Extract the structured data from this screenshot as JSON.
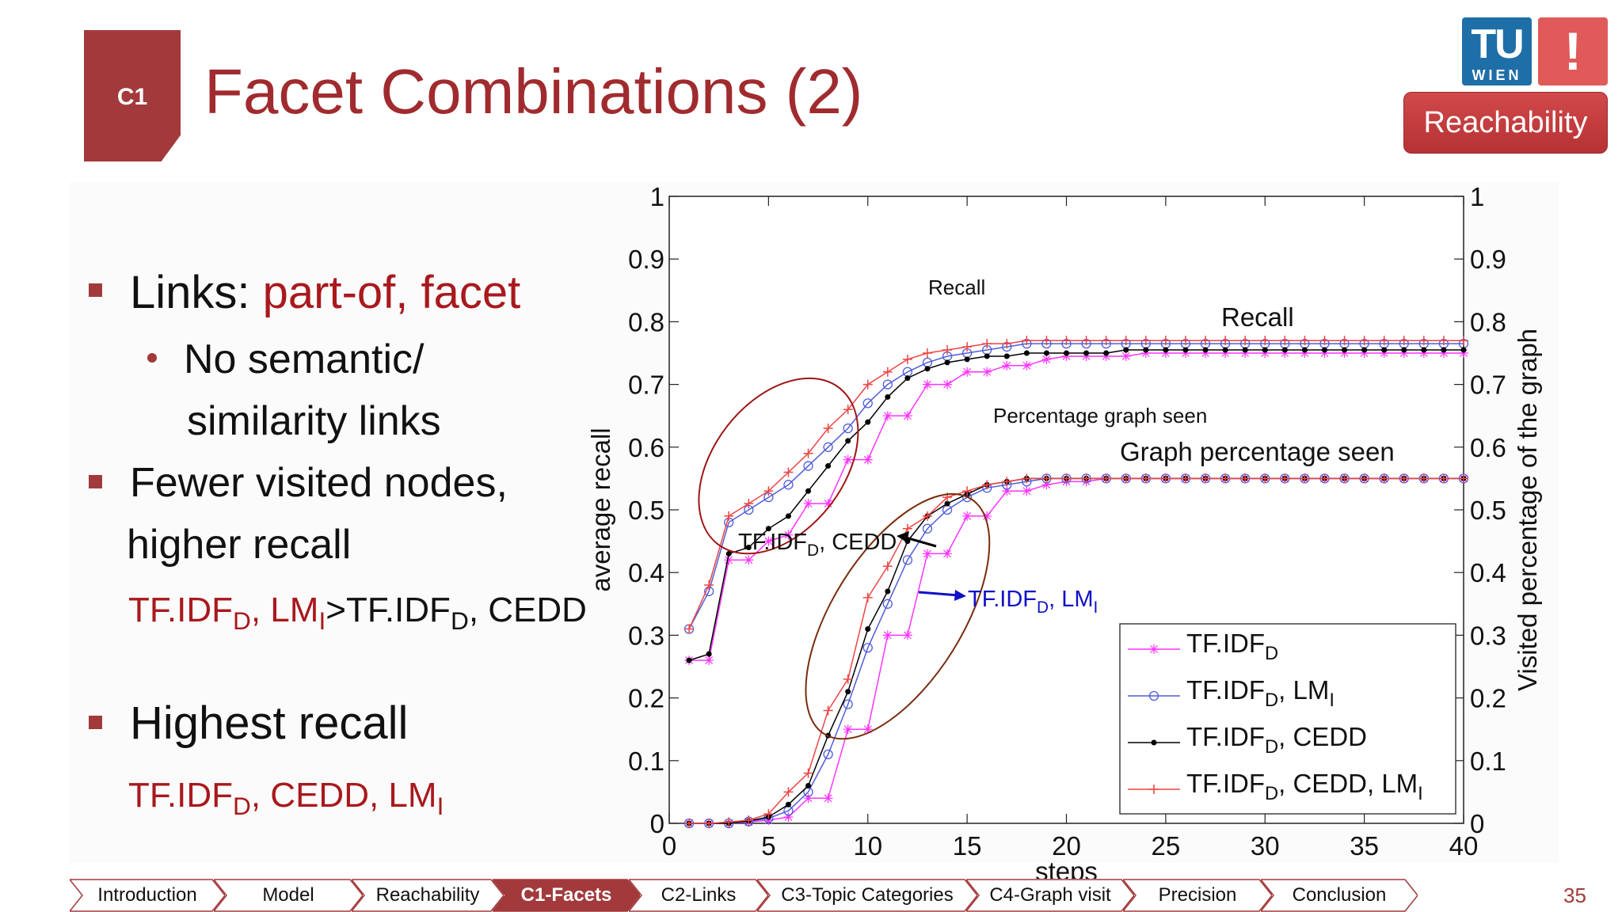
{
  "header": {
    "section_badge": "C1",
    "title": "Facet Combinations (2)",
    "logo_text_tu": "TU",
    "logo_text_wien": "WIEN",
    "logo_excl": "!",
    "reachability_button": "Reachability"
  },
  "colors": {
    "accent": "#a23a3c",
    "title_red": "#a02b2e",
    "text_red": "#a8191d",
    "logo_blue": "#1e6fa8",
    "logo_red": "#e05a5a"
  },
  "bullets": {
    "b1_prefix": "Links: ",
    "b1_red": "part-of, facet",
    "b1_sub_line1": "No semantic/",
    "b1_sub_line2": "similarity links",
    "b2_line1": "Fewer visited nodes,",
    "b2_line2": "higher recall",
    "b2_f1": "TF.IDF",
    "b2_f1_sub": "D",
    "b2_f2": ", LM",
    "b2_f2_sub": "I",
    "b2_f3": ">TF.IDF",
    "b2_f3_sub": "D",
    "b2_f4": ", CEDD",
    "b3_line1": "Highest recall",
    "b3_f1": "TF.IDF",
    "b3_f1_sub": "D",
    "b3_f2": ", CEDD, LM",
    "b3_f2_sub": "I"
  },
  "chart_data": {
    "type": "line",
    "xlabel": "steps",
    "ylabel": "average recall",
    "y2label": "Visited percentage of the graph",
    "xlim": [
      0,
      40
    ],
    "ylim": [
      0,
      1
    ],
    "xticks": [
      0,
      5,
      10,
      15,
      20,
      25,
      30,
      35,
      40
    ],
    "yticks": [
      0,
      0.1,
      0.2,
      0.3,
      0.4,
      0.5,
      0.6,
      0.7,
      0.8,
      0.9,
      1
    ],
    "xtick_labels": [
      "0",
      "5",
      "10",
      "15",
      "20",
      "25",
      "30",
      "35",
      "40"
    ],
    "ytick_labels": [
      "0",
      "0.1",
      "0.2",
      "0.3",
      "0.4",
      "0.5",
      "0.6",
      "0.7",
      "0.8",
      "0.9",
      "1"
    ],
    "legend_position": "bottom-right",
    "annotations": {
      "recall_small": "Recall",
      "recall_big": "Recall",
      "pct_small": "Percentage graph seen",
      "pct_big": "Graph percentage seen",
      "cedd_label": "TF.IDF",
      "cedd_label_sub": "D",
      "cedd_label_rest": ", CEDD",
      "lm_label": "TF.IDF",
      "lm_label_sub": "D",
      "lm_label_rest": ", LM",
      "lm_label_sub2": "I"
    },
    "legend": [
      {
        "main": "TF.IDF",
        "sub": "D",
        "rest": "",
        "sub2": ""
      },
      {
        "main": "TF.IDF",
        "sub": "D",
        "rest": ", LM",
        "sub2": "I"
      },
      {
        "main": "TF.IDF",
        "sub": "D",
        "rest": ", CEDD",
        "sub2": ""
      },
      {
        "main": "TF.IDF",
        "sub": "D",
        "rest": ", CEDD, LM",
        "sub2": "I"
      }
    ],
    "x": [
      1,
      2,
      3,
      4,
      5,
      6,
      7,
      8,
      9,
      10,
      11,
      12,
      13,
      14,
      15,
      16,
      17,
      18,
      19,
      20,
      21,
      22,
      23,
      24,
      25,
      26,
      27,
      28,
      29,
      30,
      31,
      32,
      33,
      34,
      35,
      36,
      37,
      38,
      39,
      40
    ],
    "series": [
      {
        "group": "recall",
        "legend_index": 0,
        "color": "#ff33ff",
        "marker": "star",
        "values": [
          0.26,
          0.26,
          0.42,
          0.42,
          0.45,
          0.46,
          0.51,
          0.51,
          0.58,
          0.58,
          0.65,
          0.65,
          0.7,
          0.7,
          0.72,
          0.72,
          0.73,
          0.73,
          0.74,
          0.745,
          0.745,
          0.745,
          0.745,
          0.75,
          0.75,
          0.75,
          0.75,
          0.75,
          0.75,
          0.75,
          0.75,
          0.75,
          0.75,
          0.75,
          0.75,
          0.75,
          0.75,
          0.75,
          0.75,
          0.75
        ]
      },
      {
        "group": "recall",
        "legend_index": 1,
        "color": "#4f5dd8",
        "marker": "circle",
        "values": [
          0.31,
          0.37,
          0.48,
          0.5,
          0.52,
          0.54,
          0.57,
          0.6,
          0.63,
          0.67,
          0.7,
          0.72,
          0.735,
          0.745,
          0.75,
          0.755,
          0.76,
          0.765,
          0.765,
          0.765,
          0.765,
          0.765,
          0.765,
          0.765,
          0.765,
          0.765,
          0.765,
          0.765,
          0.765,
          0.765,
          0.765,
          0.765,
          0.765,
          0.765,
          0.765,
          0.765,
          0.765,
          0.765,
          0.765,
          0.765
        ]
      },
      {
        "group": "recall",
        "legend_index": 2,
        "color": "#000000",
        "marker": "dot",
        "values": [
          0.26,
          0.27,
          0.43,
          0.44,
          0.47,
          0.49,
          0.53,
          0.57,
          0.61,
          0.64,
          0.68,
          0.71,
          0.725,
          0.735,
          0.74,
          0.745,
          0.745,
          0.75,
          0.75,
          0.75,
          0.75,
          0.75,
          0.755,
          0.755,
          0.755,
          0.755,
          0.755,
          0.755,
          0.755,
          0.755,
          0.755,
          0.755,
          0.755,
          0.755,
          0.755,
          0.755,
          0.755,
          0.755,
          0.755,
          0.755
        ]
      },
      {
        "group": "recall",
        "legend_index": 3,
        "color": "#ee4444",
        "marker": "plus",
        "values": [
          0.31,
          0.38,
          0.49,
          0.51,
          0.53,
          0.56,
          0.59,
          0.63,
          0.66,
          0.7,
          0.72,
          0.74,
          0.75,
          0.755,
          0.76,
          0.765,
          0.765,
          0.77,
          0.77,
          0.77,
          0.77,
          0.77,
          0.77,
          0.77,
          0.77,
          0.77,
          0.77,
          0.77,
          0.77,
          0.77,
          0.77,
          0.77,
          0.77,
          0.77,
          0.77,
          0.77,
          0.77,
          0.77,
          0.77,
          0.77
        ]
      },
      {
        "group": "visited",
        "legend_index": 0,
        "color": "#ff33ff",
        "marker": "star",
        "values": [
          0,
          0,
          0,
          0.002,
          0.005,
          0.01,
          0.04,
          0.04,
          0.15,
          0.15,
          0.3,
          0.3,
          0.43,
          0.43,
          0.49,
          0.49,
          0.53,
          0.53,
          0.54,
          0.545,
          0.545,
          0.55,
          0.55,
          0.55,
          0.55,
          0.55,
          0.55,
          0.55,
          0.55,
          0.55,
          0.55,
          0.55,
          0.55,
          0.55,
          0.55,
          0.55,
          0.55,
          0.55,
          0.55,
          0.55
        ]
      },
      {
        "group": "visited",
        "legend_index": 1,
        "color": "#4f5dd8",
        "marker": "circle",
        "values": [
          0,
          0,
          0,
          0.003,
          0.008,
          0.02,
          0.05,
          0.11,
          0.19,
          0.28,
          0.35,
          0.42,
          0.47,
          0.5,
          0.52,
          0.535,
          0.54,
          0.545,
          0.55,
          0.55,
          0.55,
          0.55,
          0.55,
          0.55,
          0.55,
          0.55,
          0.55,
          0.55,
          0.55,
          0.55,
          0.55,
          0.55,
          0.55,
          0.55,
          0.55,
          0.55,
          0.55,
          0.55,
          0.55,
          0.55
        ]
      },
      {
        "group": "visited",
        "legend_index": 2,
        "color": "#000000",
        "marker": "dot",
        "values": [
          0,
          0,
          0,
          0.004,
          0.01,
          0.03,
          0.06,
          0.14,
          0.21,
          0.31,
          0.37,
          0.45,
          0.49,
          0.51,
          0.525,
          0.54,
          0.545,
          0.55,
          0.55,
          0.55,
          0.55,
          0.55,
          0.55,
          0.55,
          0.55,
          0.55,
          0.55,
          0.55,
          0.55,
          0.55,
          0.55,
          0.55,
          0.55,
          0.55,
          0.55,
          0.55,
          0.55,
          0.55,
          0.55,
          0.55
        ]
      },
      {
        "group": "visited",
        "legend_index": 3,
        "color": "#ee4444",
        "marker": "plus",
        "values": [
          0,
          0,
          0.002,
          0.005,
          0.015,
          0.05,
          0.08,
          0.18,
          0.23,
          0.36,
          0.41,
          0.47,
          0.49,
          0.52,
          0.53,
          0.54,
          0.545,
          0.55,
          0.55,
          0.55,
          0.55,
          0.55,
          0.55,
          0.55,
          0.55,
          0.55,
          0.55,
          0.55,
          0.55,
          0.55,
          0.55,
          0.55,
          0.55,
          0.55,
          0.55,
          0.55,
          0.55,
          0.55,
          0.55,
          0.55
        ]
      }
    ]
  },
  "nav": {
    "items": [
      "Introduction",
      "Model",
      "Reachability",
      "C1-Facets",
      "C2-Links",
      "C3-Topic Categories",
      "C4-Graph visit",
      "Precision",
      "Conclusion"
    ],
    "active_index": 3
  },
  "page_number": "35"
}
